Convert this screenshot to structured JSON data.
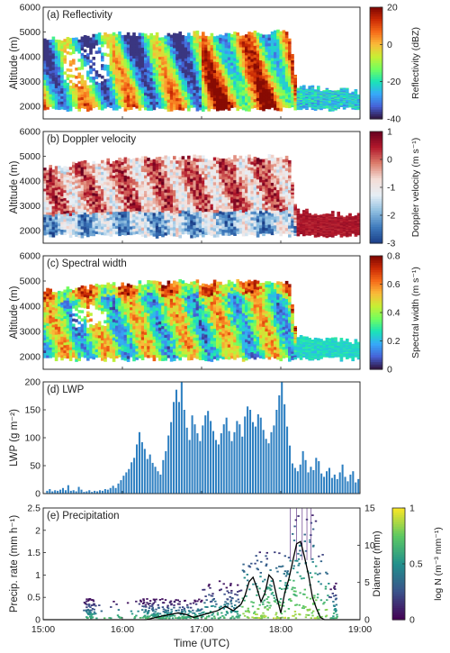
{
  "time_axis": {
    "ticks": [
      "15:00",
      "16:00",
      "17:00",
      "18:00",
      "19:00"
    ],
    "label": "Time (UTC)",
    "range_hours": [
      15,
      19
    ]
  },
  "chart_data": [
    {
      "id": "reflectivity",
      "type": "heatmap",
      "title": "(a) Reflectivity",
      "ylabel": "Altitude (m)",
      "ylim": [
        1500,
        6000
      ],
      "yticks": [
        "2000",
        "3000",
        "4000",
        "5000",
        "6000"
      ],
      "colorbar": {
        "label": "Reflectivity (dBZ)",
        "ticks": [
          "20",
          "0",
          "-20",
          "-40"
        ],
        "range": [
          -40,
          20
        ],
        "colormap": "turbo"
      },
      "cloud_base_m": 1800,
      "cloud_top_m": [
        [
          15.0,
          4700
        ],
        [
          15.4,
          4750
        ],
        [
          15.8,
          4950
        ],
        [
          16.2,
          4850
        ],
        [
          16.6,
          4900
        ],
        [
          17.0,
          4950
        ],
        [
          17.4,
          4950
        ],
        [
          17.8,
          5000
        ],
        [
          18.1,
          5000
        ],
        [
          18.2,
          2800
        ],
        [
          19.0,
          2600
        ]
      ],
      "color_levels": [
        -20,
        -5,
        10,
        5,
        -10,
        8,
        12,
        14,
        15,
        16,
        12,
        8,
        -15
      ]
    },
    {
      "id": "doppler",
      "type": "heatmap",
      "title": "(b) Doppler velocity",
      "ylabel": "Altitude (m)",
      "ylim": [
        1500,
        6000
      ],
      "yticks": [
        "2000",
        "3000",
        "4000",
        "5000",
        "6000"
      ],
      "colorbar": {
        "label": "Doppler velocity (m s⁻¹)",
        "ticks": [
          "1",
          "0",
          "-1",
          "-2",
          "-3"
        ],
        "range": [
          -3,
          1
        ],
        "colormap": "red-white-blue"
      },
      "cloud_base_m": 1700,
      "cloud_top_m": [
        [
          15.0,
          4500
        ],
        [
          15.4,
          4700
        ],
        [
          15.8,
          4800
        ],
        [
          16.2,
          4900
        ],
        [
          16.6,
          4950
        ],
        [
          17.0,
          4950
        ],
        [
          17.4,
          4950
        ],
        [
          17.8,
          5000
        ],
        [
          18.1,
          5000
        ],
        [
          18.2,
          2800
        ],
        [
          19.0,
          2600
        ]
      ]
    },
    {
      "id": "spectral",
      "type": "heatmap",
      "title": "(c) Spectral width",
      "ylabel": "Altitude (m)",
      "ylim": [
        1500,
        6000
      ],
      "yticks": [
        "2000",
        "3000",
        "4000",
        "5000",
        "6000"
      ],
      "colorbar": {
        "label": "Spectral width (m s⁻¹)",
        "ticks": [
          "0.8",
          "0.6",
          "0.4",
          "0.2",
          "0"
        ],
        "range": [
          0,
          0.8
        ],
        "colormap": "turbo"
      },
      "cloud_base_m": 1800,
      "cloud_top_m": [
        [
          15.0,
          4600
        ],
        [
          15.4,
          4700
        ],
        [
          15.8,
          4850
        ],
        [
          16.2,
          4900
        ],
        [
          16.6,
          4950
        ],
        [
          17.0,
          4950
        ],
        [
          17.4,
          4950
        ],
        [
          17.8,
          5000
        ],
        [
          18.1,
          5000
        ],
        [
          18.2,
          2800
        ],
        [
          19.0,
          2600
        ]
      ]
    },
    {
      "id": "lwp",
      "type": "bar",
      "title": "(d) LWP",
      "ylabel": "LWP (g m⁻²)",
      "ylim": [
        0,
        200
      ],
      "yticks": [
        "0",
        "50",
        "100",
        "150",
        "200"
      ],
      "bar_color": "#2d7fc1",
      "x_start_hour": 15.05,
      "x_step_hour": 0.0333,
      "values": [
        5,
        8,
        4,
        6,
        5,
        7,
        10,
        6,
        15,
        5,
        6,
        4,
        12,
        7,
        3,
        4,
        6,
        3,
        5,
        4,
        6,
        5,
        8,
        7,
        10,
        14,
        10,
        18,
        24,
        32,
        38,
        44,
        56,
        64,
        88,
        110,
        92,
        80,
        62,
        70,
        55,
        48,
        40,
        34,
        60,
        76,
        104,
        128,
        164,
        186,
        164,
        200,
        150,
        118,
        96,
        140,
        124,
        108,
        94,
        122,
        140,
        148,
        130,
        112,
        96,
        88,
        108,
        124,
        136,
        112,
        94,
        110,
        130,
        124,
        102,
        138,
        156,
        150,
        128,
        120,
        142,
        136,
        114,
        98,
        90,
        110,
        122,
        150,
        176,
        200,
        160,
        120,
        86,
        54,
        46,
        40,
        52,
        76,
        60,
        38,
        48,
        42,
        64,
        58,
        36,
        30,
        40,
        46,
        28,
        34,
        26,
        38,
        52,
        30,
        22,
        34,
        40,
        20,
        26,
        30
      ]
    },
    {
      "id": "precip",
      "type": "line",
      "title": "(e) Precipitation",
      "ylabel": "Precip. rate (mm h⁻¹)",
      "ylim": [
        0,
        2.5
      ],
      "yticks": [
        "0",
        "0.5",
        "1",
        "1.5",
        "2",
        "2.5"
      ],
      "y2label": "Diameter (mm)",
      "y2lim": [
        0,
        15
      ],
      "y2ticks": [
        "0",
        "5",
        "10",
        "15"
      ],
      "colorbar": {
        "label": "log N (m⁻³ mm⁻¹)",
        "ticks": [
          "1",
          "0.5",
          "0"
        ],
        "range": [
          0,
          1
        ],
        "colormap": "viridis"
      },
      "series": [
        {
          "x": [
            15.0,
            16.3,
            16.5,
            16.7,
            16.8,
            16.9,
            17.0,
            17.1,
            17.2,
            17.3,
            17.4,
            17.5,
            17.55,
            17.6,
            17.65,
            17.7,
            17.75,
            17.8,
            17.85,
            17.9,
            17.95,
            18.0,
            18.05,
            18.1,
            18.15,
            18.2,
            18.25,
            18.3,
            18.35,
            18.4,
            18.45,
            18.5,
            18.55,
            18.6,
            19.0
          ],
          "y": [
            0,
            0,
            0.08,
            0.15,
            0.12,
            0.05,
            0.1,
            0.15,
            0.2,
            0.3,
            0.2,
            0.35,
            0.55,
            0.85,
            0.95,
            0.7,
            0.4,
            0.6,
            1.0,
            0.9,
            0.5,
            0.15,
            0.6,
            0.9,
            1.3,
            1.7,
            1.75,
            1.4,
            1.0,
            0.5,
            0.25,
            0.05,
            0,
            0,
            0
          ],
          "color": "#000000"
        }
      ]
    }
  ]
}
